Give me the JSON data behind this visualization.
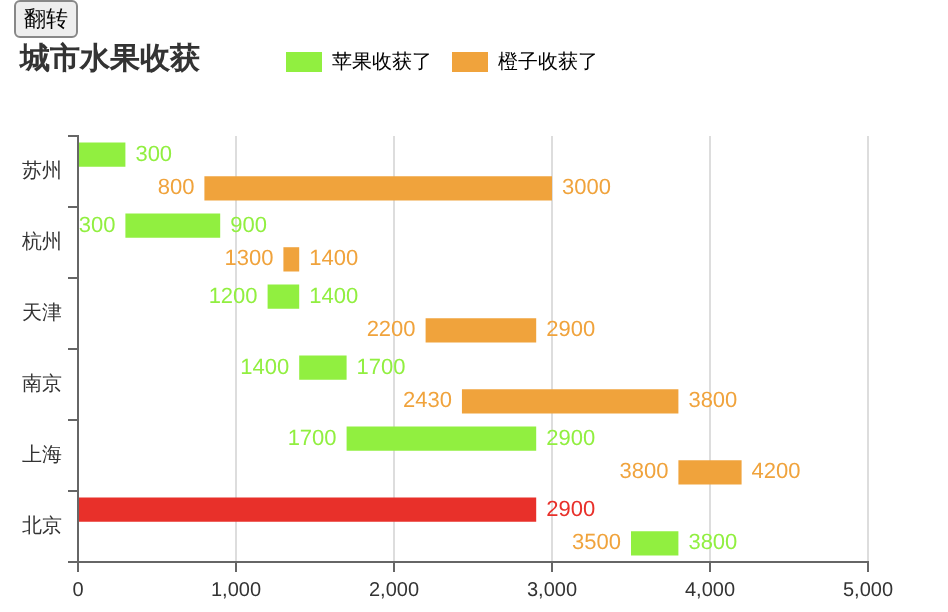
{
  "chart_data": {
    "type": "bar",
    "orientation": "horizontal",
    "title": "城市水果收获",
    "categories": [
      "苏州",
      "杭州",
      "天津",
      "南京",
      "上海",
      "北京"
    ],
    "series": [
      {
        "name": "苹果收获了",
        "color": "#91ef40",
        "colors": [
          "#91ef40",
          "#91ef40",
          "#91ef40",
          "#91ef40",
          "#91ef40",
          "#e8302a"
        ],
        "base": [
          0,
          300,
          1200,
          1400,
          1700,
          0
        ],
        "values": [
          300,
          600,
          200,
          300,
          1200,
          2900
        ],
        "value_labels": [
          "300",
          "900",
          "1400",
          "1700",
          "2900",
          "2900"
        ]
      },
      {
        "name": "橙子收获了",
        "color": "#f0a33c",
        "colors": [
          "#f0a33c",
          "#f0a33c",
          "#f0a33c",
          "#f0a33c",
          "#f0a33c",
          "#91ef40"
        ],
        "base": [
          800,
          1300,
          2200,
          2430,
          3800,
          3500
        ],
        "values": [
          2200,
          100,
          700,
          1370,
          400,
          300
        ],
        "value_labels": [
          "3000",
          "1400",
          "2900",
          "3800",
          "4200",
          "3800"
        ]
      }
    ],
    "xlim": [
      0,
      5000
    ],
    "xticks": [
      0,
      {
        "value": 1000,
        "label": "1,000"
      },
      {
        "value": 2000,
        "label": "2,000"
      },
      {
        "value": 3000,
        "label": "3,000"
      },
      {
        "value": 4000,
        "label": "4,000"
      },
      {
        "value": 5000,
        "label": "5,000"
      }
    ],
    "grid": "x",
    "legend": "top",
    "annotations": [
      "翻转",
      {
        "text": "800",
        "x": 800,
        "y": "苏州"
      },
      {
        "text": "300",
        "x": 300,
        "y": "杭州"
      },
      {
        "text": "1300",
        "x": 1300,
        "y": "杭州"
      },
      {
        "text": "1200",
        "x": 1200,
        "y": "天津"
      },
      {
        "text": "2200",
        "x": 2200,
        "y": "天津"
      },
      {
        "text": "1400",
        "x": 1400,
        "y": "南京"
      },
      {
        "text": "2430",
        "x": 2430,
        "y": "南京"
      },
      {
        "text": "1700",
        "x": 1700,
        "y": "上海"
      },
      {
        "text": "3800",
        "x": 3800,
        "y": "上海"
      },
      {
        "text": "3500",
        "x": 3500,
        "y": "北京"
      }
    ]
  }
}
